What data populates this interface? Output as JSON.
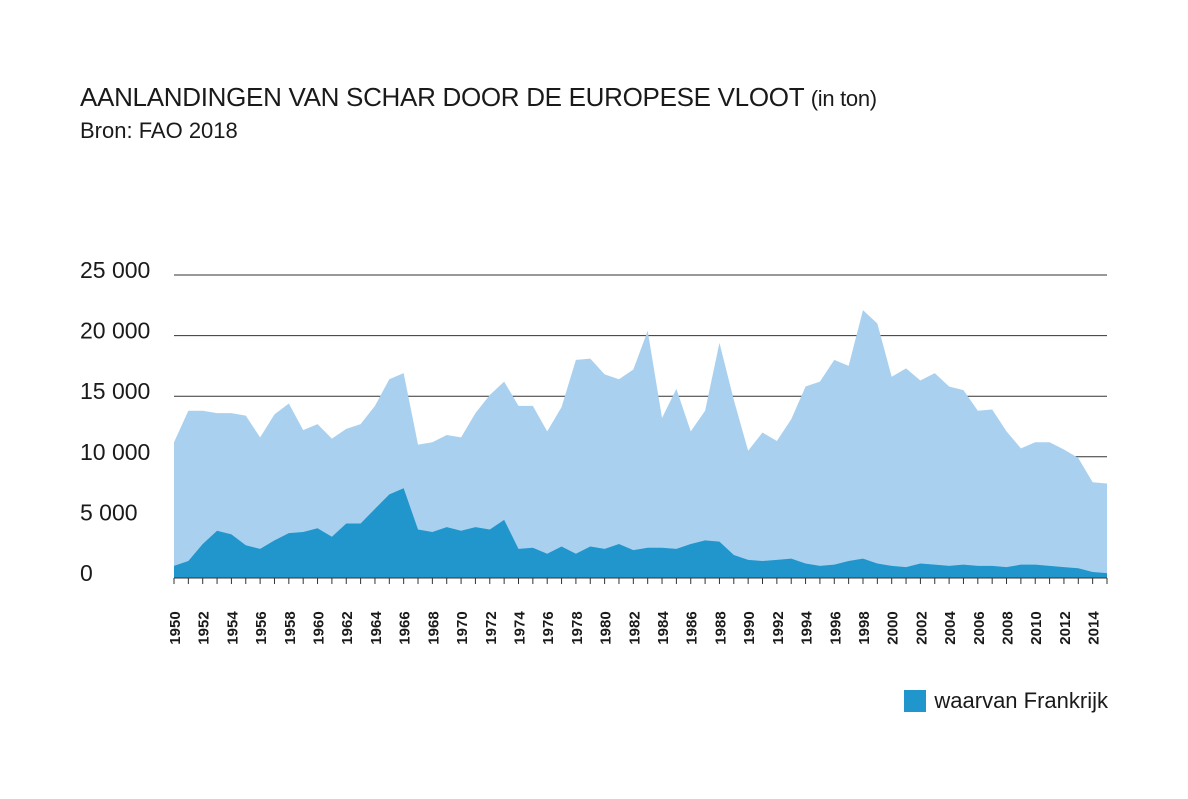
{
  "header": {
    "title": "AANLANDINGEN VAN SCHAR DOOR DE EUROPESE VLOOT",
    "unit": "(in ton)",
    "source": "Bron: FAO 2018"
  },
  "colors": {
    "total": "#a9d1ef",
    "france": "#2196cc",
    "grid": "#333333",
    "text": "#1a1a1a"
  },
  "chart_data": {
    "type": "area",
    "title": "AANLANDINGEN VAN SCHAR DOOR DE EUROPESE VLOOT (in ton)",
    "xlabel": "",
    "ylabel": "",
    "ylim": [
      0,
      25000
    ],
    "yticks": [
      0,
      5000,
      10000,
      15000,
      20000,
      25000
    ],
    "ytick_labels": [
      "0",
      "5 000",
      "10 000",
      "15 000",
      "20 000",
      "25 000"
    ],
    "xtick_labels": [
      "1950",
      "1952",
      "1954",
      "1956",
      "1958",
      "1960",
      "1962",
      "1964",
      "1966",
      "1968",
      "1970",
      "1972",
      "1974",
      "1976",
      "1978",
      "1980",
      "1982",
      "1984",
      "1986",
      "1988",
      "1990",
      "1992",
      "1994",
      "1996",
      "1998",
      "2000",
      "2002",
      "2004",
      "2006",
      "2008",
      "2010",
      "2012",
      "2014"
    ],
    "grid": true,
    "legend_position": "bottom-right",
    "x": [
      1950,
      1951,
      1952,
      1953,
      1954,
      1955,
      1956,
      1957,
      1958,
      1959,
      1960,
      1961,
      1962,
      1963,
      1964,
      1965,
      1966,
      1967,
      1968,
      1969,
      1970,
      1971,
      1972,
      1973,
      1974,
      1975,
      1976,
      1977,
      1978,
      1979,
      1980,
      1981,
      1982,
      1983,
      1984,
      1985,
      1986,
      1987,
      1988,
      1989,
      1990,
      1991,
      1992,
      1993,
      1994,
      1995,
      1996,
      1997,
      1998,
      1999,
      2000,
      2001,
      2002,
      2003,
      2004,
      2005,
      2006,
      2007,
      2008,
      2009,
      2010,
      2011,
      2012,
      2013,
      2014,
      2015
    ],
    "series": [
      {
        "key": "total",
        "values": [
          11200,
          13800,
          13800,
          13600,
          13600,
          13400,
          11600,
          13500,
          14400,
          12200,
          12700,
          11500,
          12300,
          12700,
          14200,
          16400,
          16900,
          11000,
          11200,
          11800,
          11600,
          13600,
          15100,
          16200,
          14200,
          14200,
          12100,
          14100,
          18000,
          18100,
          16800,
          16400,
          17200,
          20400,
          13200,
          15600,
          12100,
          13800,
          19400,
          14700,
          10500,
          12000,
          11300,
          13100,
          15800,
          16200,
          18000,
          17500,
          22100,
          21000,
          16600,
          17300,
          16300,
          16900,
          15800,
          15500,
          13800,
          13900,
          12100,
          10700,
          11200,
          11200,
          10600,
          9900,
          7900,
          7800
        ]
      },
      {
        "key": "france",
        "name": "waarvan Frankrijk",
        "values": [
          1000,
          1400,
          2800,
          3900,
          3600,
          2700,
          2400,
          3100,
          3700,
          3800,
          4100,
          3400,
          4500,
          4500,
          5700,
          6900,
          7400,
          4000,
          3800,
          4200,
          3900,
          4200,
          4000,
          4800,
          2400,
          2500,
          2000,
          2600,
          2000,
          2600,
          2400,
          2800,
          2300,
          2500,
          2500,
          2400,
          2800,
          3100,
          3000,
          1900,
          1500,
          1400,
          1500,
          1600,
          1200,
          1000,
          1100,
          1400,
          1600,
          1200,
          1000,
          900,
          1200,
          1100,
          1000,
          1100,
          1000,
          1000,
          900,
          1100,
          1100,
          1000,
          900,
          800,
          500,
          400
        ]
      }
    ]
  }
}
